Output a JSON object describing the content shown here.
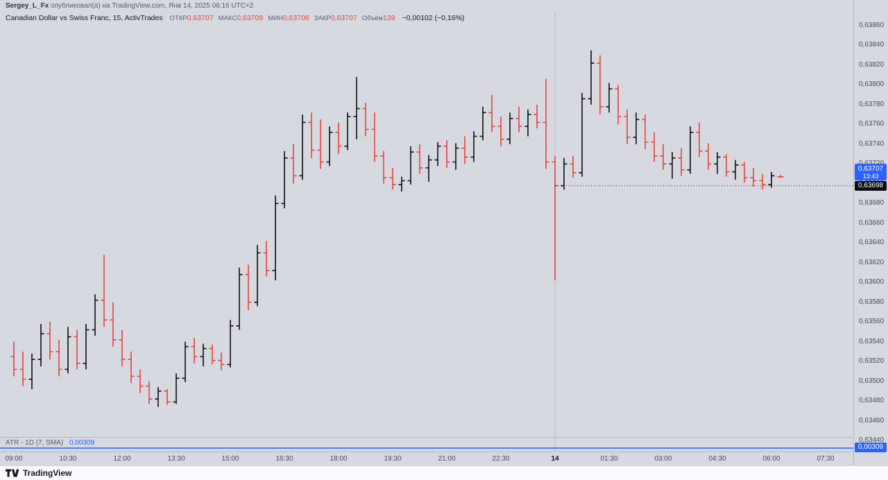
{
  "attribution": {
    "user": "Sergey_L_Fx",
    "rest": " опубликовал(а) на TradingView.com, Янв 14, 2025 06:16 UTC+2"
  },
  "legend": {
    "title": "Canadian Dollar vs Swiss Franc, 15, ActivTrades",
    "fields": [
      {
        "label": "ОТКР",
        "value": "0,63707"
      },
      {
        "label": "МАКС",
        "value": "0,63709"
      },
      {
        "label": "МИН",
        "value": "0,63706"
      },
      {
        "label": "ЗАКР",
        "value": "0,63707"
      },
      {
        "label": "Объём",
        "value": "139"
      }
    ],
    "change": "−0,00102 (−0,16%)"
  },
  "indicator": {
    "label": "ATR - 1D (7, SMA)",
    "value_text": "0,00309"
  },
  "price_axis": {
    "last_price": "0,63707",
    "countdown": "13:43",
    "line_label": "0,63698",
    "atr_label": "0,00309"
  },
  "footer": {
    "brand": "TradingView"
  },
  "colors": {
    "up": "#0b0d12",
    "down": "#e8423e",
    "accent_blue": "#2962ff",
    "background": "#d6d9e0",
    "axis_text": "#474c57",
    "grid": "#b8bcc7",
    "price_line": "#1c1f27"
  },
  "chart_data": {
    "type": "bar",
    "title": "Canadian Dollar vs Swiss Franc",
    "interval": "15",
    "provider": "ActivTrades",
    "price_base": 0.63,
    "price_scale": 1e-05,
    "ylim": [
      0.6344,
      0.6386
    ],
    "y_tick_step": 0.0002,
    "price_line": 0.63698,
    "day_separator_t": "00:00",
    "countdown": "13:43",
    "last": {
      "open": 0.63707,
      "high": 0.63709,
      "low": 0.63706,
      "close": 0.63707,
      "volume": 139,
      "change": "−0,00102",
      "change_pct": "−0,16%"
    },
    "indicator": {
      "name": "ATR - 1D (7, SMA)",
      "value": 0.00309
    },
    "x_ticks": [
      {
        "label": "09:00",
        "t": "09:00"
      },
      {
        "label": "10:30",
        "t": "10:30"
      },
      {
        "label": "12:00",
        "t": "12:00"
      },
      {
        "label": "13:30",
        "t": "13:30"
      },
      {
        "label": "15:00",
        "t": "15:00"
      },
      {
        "label": "16:30",
        "t": "16:30"
      },
      {
        "label": "18:00",
        "t": "18:00"
      },
      {
        "label": "19:30",
        "t": "19:30"
      },
      {
        "label": "21:00",
        "t": "21:00"
      },
      {
        "label": "22:30",
        "t": "22:30"
      },
      {
        "label": "14",
        "t": "00:00",
        "bold": true
      },
      {
        "label": "01:30",
        "t": "01:30"
      },
      {
        "label": "03:00",
        "t": "03:00"
      },
      {
        "label": "04:30",
        "t": "04:30"
      },
      {
        "label": "06:00",
        "t": "06:00"
      },
      {
        "label": "07:30",
        "t": "07:30"
      }
    ],
    "bars": [
      [
        "09:00",
        525,
        540,
        505,
        512
      ],
      [
        "09:15",
        512,
        530,
        495,
        502
      ],
      [
        "09:30",
        502,
        528,
        492,
        522
      ],
      [
        "09:45",
        522,
        558,
        515,
        548
      ],
      [
        "10:00",
        548,
        560,
        522,
        530
      ],
      [
        "10:15",
        530,
        542,
        505,
        512
      ],
      [
        "10:30",
        512,
        555,
        508,
        545
      ],
      [
        "10:45",
        545,
        552,
        512,
        518
      ],
      [
        "11:00",
        518,
        558,
        512,
        552
      ],
      [
        "11:15",
        552,
        588,
        546,
        582
      ],
      [
        "11:30",
        582,
        628,
        555,
        562
      ],
      [
        "11:45",
        562,
        580,
        535,
        542
      ],
      [
        "12:00",
        542,
        552,
        515,
        522
      ],
      [
        "12:15",
        522,
        530,
        498,
        505
      ],
      [
        "12:30",
        505,
        512,
        488,
        495
      ],
      [
        "12:45",
        495,
        500,
        477,
        482
      ],
      [
        "13:00",
        482,
        494,
        474,
        490
      ],
      [
        "13:15",
        490,
        492,
        476,
        479
      ],
      [
        "13:30",
        479,
        508,
        477,
        503
      ],
      [
        "13:45",
        503,
        540,
        499,
        535
      ],
      [
        "14:00",
        535,
        544,
        518,
        525
      ],
      [
        "14:15",
        525,
        538,
        515,
        533
      ],
      [
        "14:30",
        533,
        537,
        517,
        521
      ],
      [
        "14:45",
        521,
        529,
        511,
        517
      ],
      [
        "15:00",
        517,
        562,
        514,
        556
      ],
      [
        "15:15",
        556,
        615,
        552,
        608
      ],
      [
        "15:30",
        608,
        618,
        572,
        580
      ],
      [
        "15:45",
        580,
        638,
        576,
        630
      ],
      [
        "16:00",
        630,
        642,
        606,
        612
      ],
      [
        "16:15",
        612,
        688,
        602,
        680
      ],
      [
        "16:30",
        680,
        733,
        675,
        726
      ],
      [
        "16:45",
        726,
        740,
        700,
        708
      ],
      [
        "17:00",
        708,
        770,
        704,
        762
      ],
      [
        "17:15",
        762,
        772,
        726,
        734
      ],
      [
        "17:30",
        734,
        765,
        715,
        722
      ],
      [
        "17:45",
        722,
        758,
        718,
        752
      ],
      [
        "18:00",
        752,
        762,
        730,
        738
      ],
      [
        "18:15",
        738,
        772,
        734,
        768
      ],
      [
        "18:30",
        768,
        808,
        745,
        776
      ],
      [
        "18:45",
        776,
        782,
        748,
        755
      ],
      [
        "19:00",
        755,
        772,
        722,
        728
      ],
      [
        "19:15",
        728,
        733,
        700,
        706
      ],
      [
        "19:30",
        706,
        716,
        694,
        699
      ],
      [
        "19:45",
        699,
        707,
        692,
        703
      ],
      [
        "20:00",
        703,
        738,
        699,
        732
      ],
      [
        "20:15",
        732,
        740,
        710,
        716
      ],
      [
        "20:30",
        716,
        729,
        702,
        724
      ],
      [
        "20:45",
        724,
        742,
        718,
        738
      ],
      [
        "21:00",
        738,
        744,
        716,
        722
      ],
      [
        "21:15",
        722,
        741,
        714,
        736
      ],
      [
        "21:30",
        736,
        748,
        720,
        727
      ],
      [
        "21:45",
        727,
        753,
        722,
        748
      ],
      [
        "22:00",
        748,
        778,
        744,
        772
      ],
      [
        "22:15",
        772,
        790,
        752,
        758
      ],
      [
        "22:30",
        758,
        768,
        738,
        745
      ],
      [
        "22:45",
        745,
        772,
        740,
        766
      ],
      [
        "23:00",
        766,
        778,
        752,
        758
      ],
      [
        "23:15",
        758,
        775,
        748,
        770
      ],
      [
        "23:30",
        770,
        780,
        756,
        762
      ],
      [
        "23:45",
        762,
        806,
        715,
        722
      ],
      [
        "00:00",
        722,
        728,
        602,
        698
      ],
      [
        "00:15",
        698,
        726,
        694,
        720
      ],
      [
        "00:30",
        720,
        728,
        706,
        711
      ],
      [
        "00:45",
        711,
        792,
        707,
        786
      ],
      [
        "01:00",
        786,
        835,
        780,
        822
      ],
      [
        "01:15",
        822,
        830,
        770,
        778
      ],
      [
        "01:30",
        778,
        802,
        772,
        796
      ],
      [
        "01:45",
        796,
        800,
        760,
        768
      ],
      [
        "02:00",
        768,
        775,
        740,
        747
      ],
      [
        "02:15",
        747,
        772,
        740,
        765
      ],
      [
        "02:30",
        765,
        770,
        735,
        742
      ],
      [
        "02:45",
        742,
        752,
        722,
        728
      ],
      [
        "03:00",
        728,
        740,
        714,
        720
      ],
      [
        "03:15",
        720,
        732,
        705,
        726
      ],
      [
        "03:30",
        726,
        736,
        708,
        714
      ],
      [
        "03:45",
        714,
        758,
        710,
        752
      ],
      [
        "04:00",
        752,
        762,
        727,
        733
      ],
      [
        "04:15",
        733,
        741,
        714,
        720
      ],
      [
        "04:30",
        720,
        732,
        710,
        727
      ],
      [
        "04:45",
        727,
        730,
        707,
        712
      ],
      [
        "05:00",
        712,
        724,
        704,
        719
      ],
      [
        "05:15",
        719,
        722,
        701,
        706
      ],
      [
        "05:30",
        706,
        716,
        697,
        703
      ],
      [
        "05:45",
        703,
        710,
        694,
        699
      ],
      [
        "06:00",
        699,
        712,
        696,
        708
      ],
      [
        "06:15",
        707,
        709,
        706,
        707
      ]
    ]
  }
}
